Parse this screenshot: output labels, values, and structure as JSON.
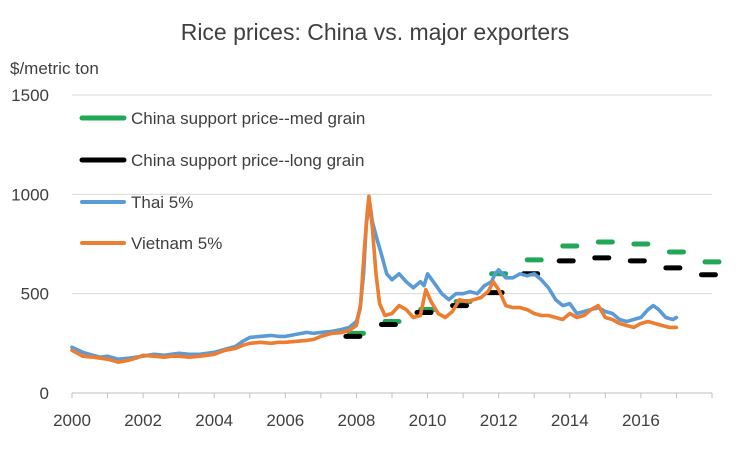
{
  "chart_data": {
    "type": "line",
    "title": "Rice prices: China vs. major exporters",
    "ylabel": "$/metric ton",
    "xlabel": "",
    "xlim": [
      2000,
      2018
    ],
    "ylim": [
      0,
      1500
    ],
    "x_ticks": [
      "2000",
      "2002",
      "2004",
      "2006",
      "2008",
      "2010",
      "2012",
      "2014",
      "2016"
    ],
    "y_ticks": [
      "0",
      "500",
      "1000",
      "1500"
    ],
    "grid": "horizontal",
    "legend_position": "upper-left",
    "series": [
      {
        "name": "China support price--med grain",
        "style": "dashed",
        "color": "#21a857",
        "values": [
          [
            2008.0,
            300
          ],
          [
            2009.0,
            360
          ],
          [
            2010.0,
            420
          ],
          [
            2011.0,
            460
          ],
          [
            2012.0,
            600
          ],
          [
            2013.0,
            670
          ],
          [
            2014.0,
            740
          ],
          [
            2015.0,
            760
          ],
          [
            2016.0,
            750
          ],
          [
            2017.0,
            710
          ],
          [
            2018.0,
            660
          ]
        ]
      },
      {
        "name": "China support price--long grain",
        "style": "dashed",
        "color": "#000000",
        "values": [
          [
            2007.9,
            285
          ],
          [
            2008.9,
            345
          ],
          [
            2009.9,
            405
          ],
          [
            2010.9,
            440
          ],
          [
            2011.9,
            505
          ],
          [
            2012.9,
            600
          ],
          [
            2013.9,
            665
          ],
          [
            2014.9,
            680
          ],
          [
            2015.9,
            665
          ],
          [
            2016.9,
            630
          ],
          [
            2017.9,
            595
          ]
        ]
      },
      {
        "name": "Thai 5%",
        "style": "solid",
        "color": "#5b9bd5",
        "values": [
          [
            2000.0,
            230
          ],
          [
            2000.3,
            205
          ],
          [
            2000.6,
            190
          ],
          [
            2000.8,
            180
          ],
          [
            2001.0,
            185
          ],
          [
            2001.3,
            170
          ],
          [
            2001.6,
            175
          ],
          [
            2001.8,
            180
          ],
          [
            2002.0,
            185
          ],
          [
            2002.3,
            195
          ],
          [
            2002.6,
            190
          ],
          [
            2002.8,
            195
          ],
          [
            2003.0,
            200
          ],
          [
            2003.3,
            195
          ],
          [
            2003.6,
            195
          ],
          [
            2003.8,
            200
          ],
          [
            2004.0,
            205
          ],
          [
            2004.3,
            220
          ],
          [
            2004.6,
            235
          ],
          [
            2004.8,
            260
          ],
          [
            2005.0,
            280
          ],
          [
            2005.3,
            285
          ],
          [
            2005.6,
            290
          ],
          [
            2005.8,
            285
          ],
          [
            2006.0,
            285
          ],
          [
            2006.3,
            295
          ],
          [
            2006.6,
            305
          ],
          [
            2006.8,
            300
          ],
          [
            2007.0,
            305
          ],
          [
            2007.3,
            310
          ],
          [
            2007.6,
            320
          ],
          [
            2007.8,
            330
          ],
          [
            2008.0,
            360
          ],
          [
            2008.1,
            420
          ],
          [
            2008.2,
            600
          ],
          [
            2008.28,
            860
          ],
          [
            2008.38,
            950
          ],
          [
            2008.45,
            860
          ],
          [
            2008.6,
            760
          ],
          [
            2008.7,
            700
          ],
          [
            2008.85,
            600
          ],
          [
            2009.0,
            570
          ],
          [
            2009.2,
            600
          ],
          [
            2009.4,
            560
          ],
          [
            2009.6,
            530
          ],
          [
            2009.8,
            560
          ],
          [
            2009.9,
            540
          ],
          [
            2010.0,
            600
          ],
          [
            2010.2,
            550
          ],
          [
            2010.4,
            500
          ],
          [
            2010.6,
            470
          ],
          [
            2010.8,
            500
          ],
          [
            2011.0,
            500
          ],
          [
            2011.2,
            510
          ],
          [
            2011.4,
            500
          ],
          [
            2011.6,
            540
          ],
          [
            2011.8,
            560
          ],
          [
            2011.9,
            600
          ],
          [
            2012.0,
            620
          ],
          [
            2012.2,
            580
          ],
          [
            2012.4,
            580
          ],
          [
            2012.6,
            600
          ],
          [
            2012.8,
            590
          ],
          [
            2013.0,
            600
          ],
          [
            2013.2,
            570
          ],
          [
            2013.4,
            530
          ],
          [
            2013.6,
            470
          ],
          [
            2013.8,
            440
          ],
          [
            2014.0,
            450
          ],
          [
            2014.2,
            400
          ],
          [
            2014.4,
            410
          ],
          [
            2014.6,
            420
          ],
          [
            2014.8,
            430
          ],
          [
            2015.0,
            410
          ],
          [
            2015.2,
            400
          ],
          [
            2015.4,
            370
          ],
          [
            2015.6,
            360
          ],
          [
            2015.8,
            370
          ],
          [
            2016.0,
            380
          ],
          [
            2016.2,
            420
          ],
          [
            2016.35,
            440
          ],
          [
            2016.5,
            420
          ],
          [
            2016.7,
            380
          ],
          [
            2016.9,
            370
          ],
          [
            2017.0,
            380
          ]
        ]
      },
      {
        "name": "Vietnam 5%",
        "style": "solid",
        "color": "#ed7d31",
        "values": [
          [
            2000.0,
            215
          ],
          [
            2000.3,
            185
          ],
          [
            2000.6,
            180
          ],
          [
            2000.8,
            175
          ],
          [
            2001.0,
            170
          ],
          [
            2001.3,
            155
          ],
          [
            2001.6,
            165
          ],
          [
            2001.8,
            175
          ],
          [
            2002.0,
            190
          ],
          [
            2002.3,
            185
          ],
          [
            2002.6,
            180
          ],
          [
            2002.8,
            185
          ],
          [
            2003.0,
            185
          ],
          [
            2003.3,
            180
          ],
          [
            2003.6,
            185
          ],
          [
            2003.8,
            190
          ],
          [
            2004.0,
            195
          ],
          [
            2004.3,
            215
          ],
          [
            2004.6,
            225
          ],
          [
            2004.8,
            240
          ],
          [
            2005.0,
            250
          ],
          [
            2005.3,
            255
          ],
          [
            2005.6,
            250
          ],
          [
            2005.8,
            255
          ],
          [
            2006.0,
            255
          ],
          [
            2006.3,
            260
          ],
          [
            2006.6,
            265
          ],
          [
            2006.8,
            270
          ],
          [
            2007.0,
            285
          ],
          [
            2007.3,
            300
          ],
          [
            2007.6,
            305
          ],
          [
            2007.8,
            315
          ],
          [
            2008.0,
            340
          ],
          [
            2008.12,
            450
          ],
          [
            2008.22,
            720
          ],
          [
            2008.3,
            900
          ],
          [
            2008.35,
            990
          ],
          [
            2008.45,
            830
          ],
          [
            2008.55,
            600
          ],
          [
            2008.65,
            450
          ],
          [
            2008.8,
            390
          ],
          [
            2009.0,
            400
          ],
          [
            2009.2,
            440
          ],
          [
            2009.4,
            420
          ],
          [
            2009.6,
            380
          ],
          [
            2009.8,
            390
          ],
          [
            2009.95,
            520
          ],
          [
            2010.1,
            460
          ],
          [
            2010.3,
            400
          ],
          [
            2010.5,
            380
          ],
          [
            2010.7,
            410
          ],
          [
            2010.9,
            470
          ],
          [
            2011.1,
            460
          ],
          [
            2011.3,
            470
          ],
          [
            2011.5,
            480
          ],
          [
            2011.7,
            510
          ],
          [
            2011.85,
            560
          ],
          [
            2012.0,
            520
          ],
          [
            2012.2,
            440
          ],
          [
            2012.4,
            430
          ],
          [
            2012.6,
            430
          ],
          [
            2012.8,
            420
          ],
          [
            2013.0,
            400
          ],
          [
            2013.2,
            390
          ],
          [
            2013.4,
            390
          ],
          [
            2013.6,
            380
          ],
          [
            2013.8,
            370
          ],
          [
            2014.0,
            400
          ],
          [
            2014.2,
            380
          ],
          [
            2014.4,
            390
          ],
          [
            2014.6,
            420
          ],
          [
            2014.8,
            440
          ],
          [
            2015.0,
            380
          ],
          [
            2015.2,
            370
          ],
          [
            2015.4,
            350
          ],
          [
            2015.6,
            340
          ],
          [
            2015.8,
            330
          ],
          [
            2016.0,
            350
          ],
          [
            2016.2,
            360
          ],
          [
            2016.4,
            350
          ],
          [
            2016.6,
            340
          ],
          [
            2016.8,
            330
          ],
          [
            2017.0,
            330
          ]
        ]
      }
    ]
  }
}
